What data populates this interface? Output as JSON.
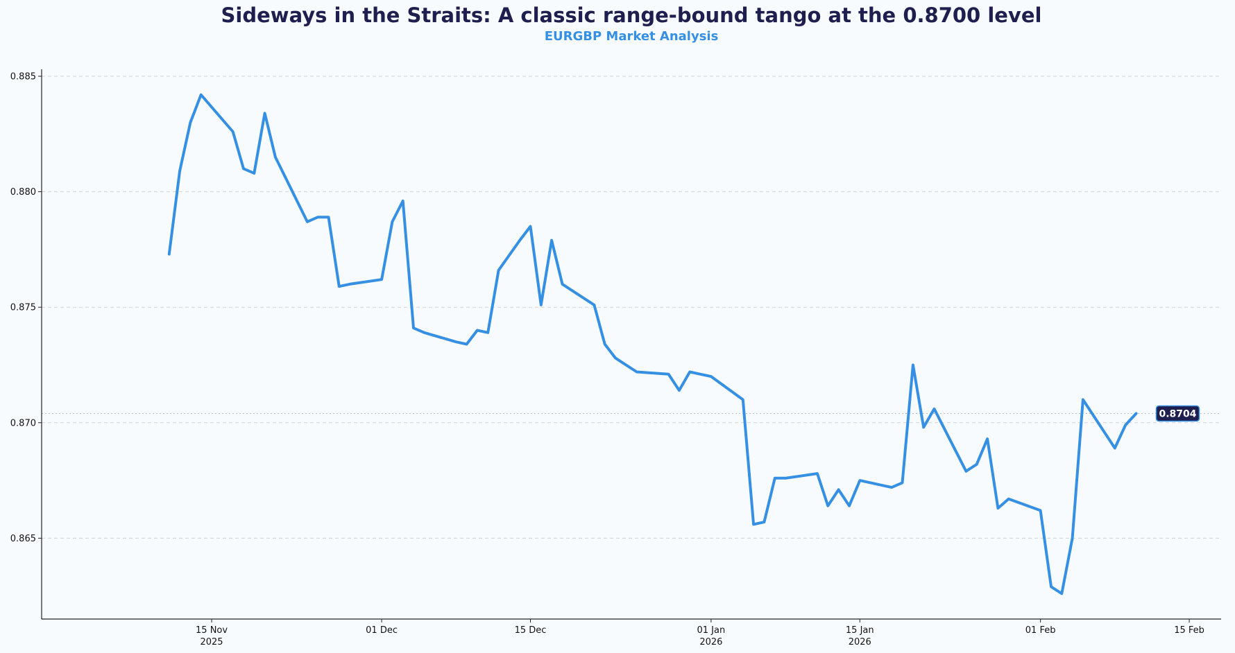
{
  "chart_data": {
    "type": "line",
    "title": "Sideways in the Straits: A classic range-bound tango at the 0.8700 level",
    "subtitle": "EURGBP Market Analysis",
    "xlabel": "",
    "ylabel": "",
    "ylim": [
      0.8615,
      0.8853
    ],
    "xlim_days": [
      -16,
      95
    ],
    "grid": "horizontal-dashed",
    "colors": {
      "line": "#3590e3",
      "title": "#1f1f4f",
      "subtitle": "#3590e3",
      "badge_bg": "#1f1f4f",
      "badge_border": "#3590e3",
      "badge_text": "#ffffff",
      "background": "#f8fbfd",
      "grid": "#cfd4d9",
      "axis": "#222222"
    },
    "y_ticks": [
      {
        "value": 0.865,
        "label": "0.865"
      },
      {
        "value": 0.87,
        "label": "0.870"
      },
      {
        "value": 0.875,
        "label": "0.875"
      },
      {
        "value": 0.88,
        "label": "0.880"
      },
      {
        "value": 0.885,
        "label": "0.885"
      }
    ],
    "x_ticks": [
      {
        "day": 0,
        "label": "15 Nov",
        "sublabel": "2025"
      },
      {
        "day": 16,
        "label": "01 Dec",
        "sublabel": ""
      },
      {
        "day": 30,
        "label": "15 Dec",
        "sublabel": ""
      },
      {
        "day": 47,
        "label": "01 Jan",
        "sublabel": "2026"
      },
      {
        "day": 61,
        "label": "15 Jan",
        "sublabel": "2026"
      },
      {
        "day": 78,
        "label": "01 Feb",
        "sublabel": ""
      },
      {
        "day": 92,
        "label": "15 Feb",
        "sublabel": ""
      }
    ],
    "x_unit": "days since 2025-11-15",
    "series": [
      {
        "name": "EURGBP",
        "points": [
          [
            -4,
            0.8773
          ],
          [
            -3,
            0.8809
          ],
          [
            -2,
            0.883
          ],
          [
            -1,
            0.8842
          ],
          [
            2,
            0.8826
          ],
          [
            3,
            0.881
          ],
          [
            4,
            0.8808
          ],
          [
            5,
            0.8834
          ],
          [
            6,
            0.8815
          ],
          [
            9,
            0.8787
          ],
          [
            10,
            0.8789
          ],
          [
            11,
            0.8789
          ],
          [
            12,
            0.8759
          ],
          [
            13,
            0.876
          ],
          [
            16,
            0.8762
          ],
          [
            17,
            0.8787
          ],
          [
            18,
            0.8796
          ],
          [
            19,
            0.8741
          ],
          [
            20,
            0.8739
          ],
          [
            23,
            0.8735
          ],
          [
            24,
            0.8734
          ],
          [
            25,
            0.874
          ],
          [
            26,
            0.8739
          ],
          [
            27,
            0.8766
          ],
          [
            29,
            0.8779
          ],
          [
            30,
            0.8785
          ],
          [
            31,
            0.8751
          ],
          [
            32,
            0.8779
          ],
          [
            33,
            0.876
          ],
          [
            36,
            0.8751
          ],
          [
            37,
            0.8734
          ],
          [
            38,
            0.8728
          ],
          [
            40,
            0.8722
          ],
          [
            43,
            0.8721
          ],
          [
            44,
            0.8714
          ],
          [
            45,
            0.8722
          ],
          [
            46,
            0.8721
          ],
          [
            47,
            0.872
          ],
          [
            50,
            0.871
          ],
          [
            51,
            0.8656
          ],
          [
            52,
            0.8657
          ],
          [
            53,
            0.8676
          ],
          [
            54,
            0.8676
          ],
          [
            57,
            0.8678
          ],
          [
            58,
            0.8664
          ],
          [
            59,
            0.8671
          ],
          [
            60,
            0.8664
          ],
          [
            61,
            0.8675
          ],
          [
            64,
            0.8672
          ],
          [
            65,
            0.8674
          ],
          [
            66,
            0.8725
          ],
          [
            67,
            0.8698
          ],
          [
            68,
            0.8706
          ],
          [
            71,
            0.8679
          ],
          [
            72,
            0.8682
          ],
          [
            73,
            0.8693
          ],
          [
            74,
            0.8663
          ],
          [
            75,
            0.8667
          ],
          [
            78,
            0.8662
          ],
          [
            79,
            0.8629
          ],
          [
            80,
            0.8626
          ],
          [
            81,
            0.865
          ],
          [
            82,
            0.871
          ],
          [
            85,
            0.8689
          ],
          [
            86,
            0.8699
          ],
          [
            87,
            0.8704
          ]
        ]
      }
    ],
    "reference_line": {
      "value": 0.8704,
      "style": "dotted"
    },
    "last_value_label": "0.8704"
  }
}
